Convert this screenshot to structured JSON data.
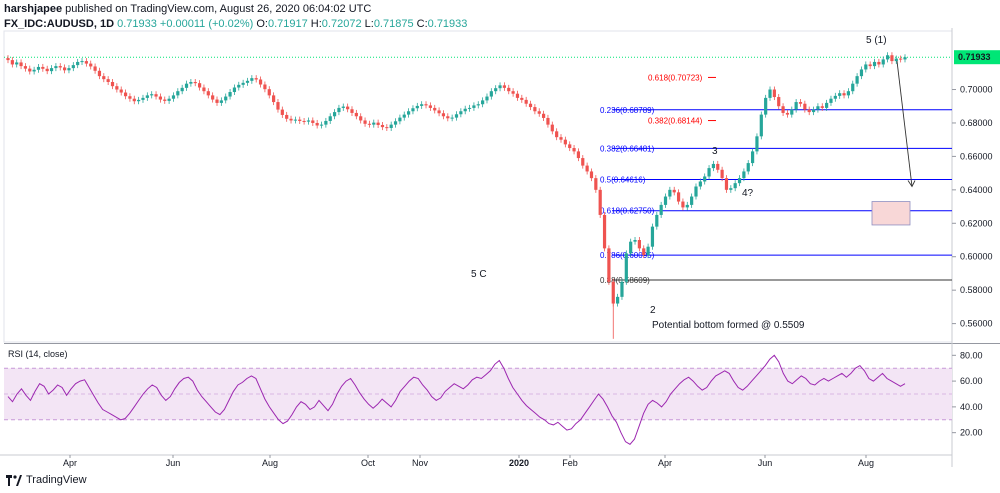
{
  "header": {
    "publisher": "harshjapee",
    "published_text": "published on TradingView.com, August 26, 2020 06:04:02 UTC",
    "symbol": "FX_IDC:AUDUSD, 1D",
    "last": "0.71933",
    "change": "+0.00011 (+0.02%)",
    "o_label": "O:",
    "o_value": "0.71917",
    "h_label": "H:",
    "h_value": "0.72072",
    "l_label": "L:",
    "l_value": "0.71875",
    "c_label": "C:",
    "c_value": "0.71933"
  },
  "footer": {
    "brand": "TradingView"
  },
  "colors": {
    "up": "#26a69a",
    "down": "#ef5350",
    "fib_blue": "#0000ff",
    "fib_red": "#ff0000",
    "rsi_line": "#9c27b0",
    "rsi_band": "#f3e5f5",
    "price_line": "#00e676"
  },
  "chart_data": {
    "type": "candlestick",
    "price_axis": {
      "ticks": [
        "0.56000",
        "0.58000",
        "0.60000",
        "0.62000",
        "0.64000",
        "0.66000",
        "0.68000",
        "0.70000"
      ],
      "range": [
        0.549,
        0.735
      ]
    },
    "last_price_label": "0.71933",
    "time_axis": [
      "Apr",
      "Jun",
      "Aug",
      "Oct",
      "Nov",
      "2020",
      "Feb",
      "Apr",
      "Jun",
      "Aug"
    ],
    "close_series": [
      0.7176,
      0.715,
      0.7162,
      0.714,
      0.7125,
      0.7108,
      0.7118,
      0.7135,
      0.7124,
      0.711,
      0.7128,
      0.714,
      0.7132,
      0.7115,
      0.7128,
      0.7146,
      0.7165,
      0.717,
      0.7155,
      0.7138,
      0.7112,
      0.708,
      0.7062,
      0.7045,
      0.702,
      0.7,
      0.6982,
      0.696,
      0.6945,
      0.693,
      0.6938,
      0.695,
      0.6965,
      0.6972,
      0.6958,
      0.694,
      0.6932,
      0.6945,
      0.6965,
      0.699,
      0.701,
      0.7035,
      0.7045,
      0.7038,
      0.7012,
      0.699,
      0.6965,
      0.694,
      0.692,
      0.6935,
      0.6958,
      0.6985,
      0.7012,
      0.7028,
      0.704,
      0.7052,
      0.7068,
      0.706,
      0.703,
      0.7002,
      0.6965,
      0.6925,
      0.688,
      0.6848,
      0.6825,
      0.6815,
      0.682,
      0.6812,
      0.6808,
      0.6815,
      0.68,
      0.6785,
      0.679,
      0.6812,
      0.684,
      0.6865,
      0.689,
      0.6898,
      0.6882,
      0.686,
      0.684,
      0.6815,
      0.6795,
      0.679,
      0.6802,
      0.6788,
      0.6775,
      0.677,
      0.679,
      0.681,
      0.6832,
      0.685,
      0.687,
      0.6888,
      0.6902,
      0.6912,
      0.6905,
      0.689,
      0.6875,
      0.6858,
      0.684,
      0.6828,
      0.6832,
      0.6852,
      0.687,
      0.6885,
      0.689,
      0.6905,
      0.6912,
      0.6935,
      0.6958,
      0.699,
      0.7008,
      0.7025,
      0.701,
      0.699,
      0.6975,
      0.695,
      0.6938,
      0.6915,
      0.6895,
      0.687,
      0.6855,
      0.683,
      0.679,
      0.675,
      0.6715,
      0.67,
      0.6672,
      0.665,
      0.663,
      0.659,
      0.6545,
      0.651,
      0.647,
      0.64,
      0.625,
      0.605,
      0.585,
      0.572,
      0.576,
      0.585,
      0.602,
      0.609,
      0.61,
      0.605,
      0.601,
      0.606,
      0.618,
      0.625,
      0.631,
      0.636,
      0.64,
      0.6385,
      0.633,
      0.6295,
      0.631,
      0.636,
      0.642,
      0.645,
      0.648,
      0.653,
      0.6555,
      0.652,
      0.647,
      0.64,
      0.641,
      0.644,
      0.647,
      0.651,
      0.656,
      0.663,
      0.672,
      0.685,
      0.695,
      0.7,
      0.6955,
      0.69,
      0.686,
      0.685,
      0.688,
      0.6925,
      0.6915,
      0.688,
      0.6865,
      0.688,
      0.69,
      0.689,
      0.692,
      0.6945,
      0.6962,
      0.6978,
      0.6965,
      0.699,
      0.7035,
      0.708,
      0.712,
      0.715,
      0.714,
      0.7165,
      0.715,
      0.718,
      0.7205,
      0.717,
      0.7185,
      0.718,
      0.7193
    ],
    "rsi": {
      "label": "RSI (14, close)",
      "ticks": [
        "20.00",
        "40.00",
        "60.00",
        "80.00"
      ],
      "range": [
        5,
        88
      ],
      "bands": [
        30,
        70
      ],
      "values": [
        48,
        44,
        50,
        54,
        49,
        45,
        52,
        58,
        56,
        50,
        53,
        57,
        55,
        49,
        54,
        58,
        60,
        61,
        55,
        49,
        43,
        38,
        36,
        34,
        32,
        30,
        31,
        35,
        40,
        45,
        50,
        54,
        57,
        55,
        49,
        45,
        48,
        54,
        59,
        62,
        63,
        60,
        53,
        48,
        44,
        40,
        36,
        34,
        38,
        45,
        52,
        57,
        59,
        62,
        64,
        62,
        54,
        46,
        40,
        35,
        30,
        27,
        29,
        34,
        40,
        44,
        42,
        38,
        40,
        45,
        41,
        37,
        42,
        50,
        56,
        60,
        62,
        57,
        51,
        46,
        42,
        39,
        42,
        46,
        43,
        40,
        45,
        52,
        56,
        60,
        63,
        62,
        57,
        53,
        48,
        45,
        47,
        52,
        55,
        58,
        56,
        54,
        57,
        61,
        63,
        62,
        65,
        68,
        73,
        76,
        70,
        62,
        55,
        50,
        45,
        41,
        38,
        35,
        32,
        30,
        27,
        26,
        28,
        25,
        22,
        23,
        27,
        30,
        35,
        40,
        45,
        50,
        46,
        40,
        33,
        28,
        20,
        13,
        11,
        15,
        25,
        35,
        42,
        45,
        43,
        40,
        44,
        50,
        54,
        58,
        61,
        63,
        60,
        56,
        53,
        55,
        60,
        64,
        66,
        68,
        66,
        60,
        55,
        53,
        56,
        60,
        64,
        68,
        72,
        77,
        80,
        75,
        66,
        60,
        58,
        61,
        64,
        62,
        58,
        57,
        60,
        62,
        60,
        62,
        64,
        66,
        63,
        66,
        70,
        72,
        68,
        62,
        60,
        63,
        66,
        62,
        60,
        58,
        56,
        58
      ]
    },
    "fib_levels": [
      {
        "label": "0.236(0.68789)",
        "price": 0.68789,
        "color": "#0000ff"
      },
      {
        "label": "0.382(0.66481)",
        "price": 0.66481,
        "color": "#0000ff"
      },
      {
        "label": "0.5(0.64616)",
        "price": 0.64616,
        "color": "#0000ff"
      },
      {
        "label": "0.618(0.62750)",
        "price": 0.6275,
        "color": "#0000ff"
      },
      {
        "label": "0.786(0.60095)",
        "price": 0.60095,
        "color": "#0000ff"
      },
      {
        "label": "0.88(0.58609)",
        "price": 0.58609,
        "color": "#333333"
      }
    ],
    "fib_red_labels": [
      {
        "label": "0.618(0.70723)",
        "price": 0.70723
      },
      {
        "label": "0.382(0.68144)",
        "price": 0.68144
      }
    ],
    "annotations": {
      "wave5": "5 (1)",
      "wave3": "3",
      "wave4": "4?",
      "wave2": "2",
      "wave5c": "5 C",
      "bottom_note": "Potential bottom formed @ 0.5509"
    }
  }
}
